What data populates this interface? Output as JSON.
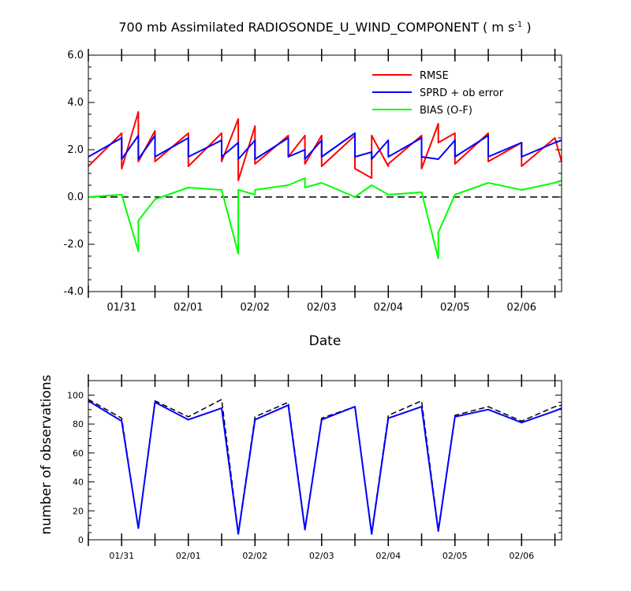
{
  "chart_data": [
    {
      "type": "line",
      "title_main": "700 mb Assimilated RADIOSONDE_U_WIND_COMPONENT ( m s",
      "title_sup": "-1",
      "title_end": " )",
      "xlabel": "Date",
      "ylabel": "",
      "xlim": [
        0,
        7.1
      ],
      "ylim": [
        -4,
        6
      ],
      "yticks": [
        -4,
        -2,
        0,
        2,
        4,
        6
      ],
      "ytick_labels": [
        "-4.0",
        "-2.0",
        "0.0",
        "2.0",
        "4.0",
        "6.0"
      ],
      "xtick_labels": [
        {
          "x": 0.5,
          "label": "01/31"
        },
        {
          "x": 1.5,
          "label": "02/01"
        },
        {
          "x": 2.5,
          "label": "02/02"
        },
        {
          "x": 3.5,
          "label": "02/03"
        },
        {
          "x": 4.5,
          "label": "02/04"
        },
        {
          "x": 5.5,
          "label": "02/05"
        },
        {
          "x": 6.5,
          "label": "02/06"
        }
      ],
      "zero_line": {
        "y": 0,
        "style": "dashed",
        "color": "#000000"
      },
      "legend_position": "top-right",
      "series": [
        {
          "name": "RMSE",
          "color": "#ff0000",
          "x": [
            0,
            0.5,
            0.5,
            0.75,
            0.75,
            1.0,
            1.0,
            1.5,
            1.5,
            2.0,
            2.0,
            2.25,
            2.25,
            2.5,
            2.5,
            3.0,
            3.0,
            3.25,
            3.25,
            3.5,
            3.5,
            4.0,
            4.0,
            4.25,
            4.25,
            4.5,
            4.5,
            5.0,
            5.0,
            5.25,
            5.25,
            5.5,
            5.5,
            6.0,
            6.0,
            6.5,
            6.5,
            7.0,
            7.1
          ],
          "y": [
            1.3,
            2.7,
            1.2,
            3.6,
            1.5,
            2.8,
            1.5,
            2.7,
            1.3,
            2.7,
            1.5,
            3.3,
            0.7,
            3.0,
            1.4,
            2.6,
            1.7,
            2.6,
            1.4,
            2.6,
            1.3,
            2.6,
            1.2,
            0.8,
            2.6,
            1.3,
            1.4,
            2.6,
            1.2,
            3.1,
            2.3,
            2.7,
            1.4,
            2.7,
            1.5,
            2.3,
            1.3,
            2.5,
            1.5
          ]
        },
        {
          "name": "SPRD + ob error",
          "color": "#0000ff",
          "x": [
            0,
            0.5,
            0.5,
            0.75,
            0.75,
            1.0,
            1.0,
            1.5,
            1.5,
            2.0,
            2.0,
            2.25,
            2.25,
            2.5,
            2.5,
            3.0,
            3.0,
            3.25,
            3.25,
            3.5,
            3.5,
            4.0,
            4.0,
            4.25,
            4.25,
            4.5,
            4.5,
            5.0,
            5.0,
            5.25,
            5.25,
            5.5,
            5.5,
            6.0,
            6.0,
            6.5,
            6.5,
            7.0,
            7.1
          ],
          "y": [
            1.7,
            2.5,
            1.6,
            2.6,
            1.6,
            2.6,
            1.7,
            2.5,
            1.7,
            2.4,
            1.7,
            2.3,
            1.6,
            2.4,
            1.6,
            2.5,
            1.7,
            2.0,
            1.6,
            2.4,
            1.7,
            2.7,
            1.7,
            1.9,
            1.6,
            2.4,
            1.7,
            2.5,
            1.7,
            1.6,
            1.6,
            2.4,
            1.7,
            2.6,
            1.7,
            2.3,
            1.7,
            2.3,
            2.4
          ]
        },
        {
          "name": "BIAS (O-F)",
          "color": "#00ff00",
          "x": [
            0,
            0.5,
            0.75,
            0.75,
            1.0,
            1.5,
            2.0,
            2.25,
            2.25,
            2.5,
            2.5,
            3.0,
            3.25,
            3.25,
            3.5,
            4.0,
            4.25,
            4.5,
            5.0,
            5.25,
            5.25,
            5.5,
            6.0,
            6.5,
            7.0,
            7.1
          ],
          "y": [
            0.0,
            0.1,
            -2.3,
            -1.0,
            -0.1,
            0.4,
            0.3,
            -2.4,
            0.3,
            0.1,
            0.3,
            0.5,
            0.8,
            0.4,
            0.6,
            0.0,
            0.5,
            0.1,
            0.2,
            -2.6,
            -1.5,
            0.1,
            0.6,
            0.3,
            0.6,
            0.7
          ]
        }
      ]
    },
    {
      "type": "line",
      "ylabel": "number of observations",
      "xlim": [
        0,
        7.1
      ],
      "ylim": [
        0,
        110
      ],
      "yticks": [
        0,
        20,
        40,
        60,
        80,
        100
      ],
      "ytick_labels": [
        "0",
        "20",
        "40",
        "60",
        "80",
        "100"
      ],
      "xtick_labels": [
        {
          "x": 0.5,
          "label": "01/31"
        },
        {
          "x": 1.5,
          "label": "02/01"
        },
        {
          "x": 2.5,
          "label": "02/02"
        },
        {
          "x": 3.5,
          "label": "02/03"
        },
        {
          "x": 4.5,
          "label": "02/04"
        },
        {
          "x": 5.5,
          "label": "02/05"
        },
        {
          "x": 6.5,
          "label": "02/06"
        }
      ],
      "series": [
        {
          "style": "dashed",
          "color": "#000000",
          "x": [
            0,
            0.5,
            0.75,
            1.0,
            1.5,
            2.0,
            2.25,
            2.5,
            3.0,
            3.25,
            3.5,
            4.0,
            4.25,
            4.5,
            5.0,
            5.25,
            5.5,
            6.0,
            6.5,
            7.0,
            7.1
          ],
          "y": [
            97,
            84,
            8,
            96,
            85,
            97,
            5,
            85,
            95,
            8,
            84,
            92,
            5,
            86,
            96,
            7,
            86,
            92,
            82,
            92,
            93
          ]
        },
        {
          "style": "solid",
          "color": "#0000ff",
          "x": [
            0,
            0.5,
            0.75,
            1.0,
            1.5,
            2.0,
            2.25,
            2.5,
            3.0,
            3.25,
            3.5,
            4.0,
            4.25,
            4.5,
            5.0,
            5.25,
            5.5,
            6.0,
            6.5,
            7.0,
            7.1
          ],
          "y": [
            96,
            82,
            8,
            95,
            83,
            91,
            4,
            83,
            93,
            7,
            83,
            92,
            4,
            84,
            92,
            6,
            85,
            90,
            81,
            89,
            91
          ]
        }
      ]
    }
  ]
}
